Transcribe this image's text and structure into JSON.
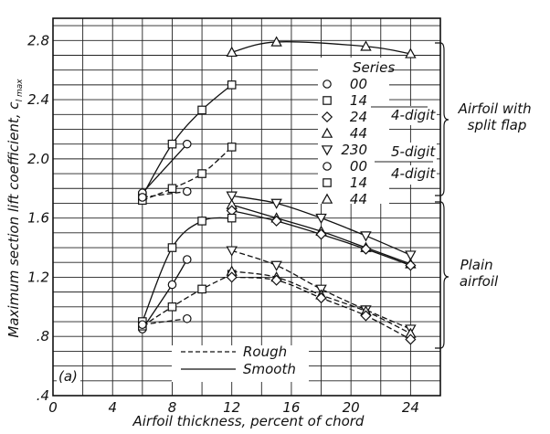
{
  "chart_data": {
    "type": "line",
    "panel_tag": "(a)",
    "xlabel": "Airfoil thickness, percent of chord",
    "ylabel": "Maximum section lift coefficient, c",
    "ylabel_sub": "l max",
    "xlim": [
      0,
      26
    ],
    "ylim": [
      0.4,
      2.95
    ],
    "xticks": [
      0,
      4,
      8,
      12,
      16,
      20,
      24
    ],
    "yticks": [
      0.4,
      0.8,
      1.2,
      1.6,
      2.0,
      2.4,
      2.8
    ],
    "ytick_labels": [
      ".4",
      ".8",
      "1.2",
      "1.6",
      "2.0",
      "2.4",
      "2.8"
    ],
    "grid": true,
    "legend_title": "Series",
    "legend": [
      {
        "marker": "circle",
        "label": "00"
      },
      {
        "marker": "square",
        "label": "14"
      },
      {
        "marker": "diamond",
        "label": "24"
      },
      {
        "marker": "triangle",
        "label": "44"
      },
      {
        "marker": "triangle-down",
        "label": "230"
      },
      {
        "marker": "circle",
        "label": "00"
      },
      {
        "marker": "square",
        "label": "14"
      },
      {
        "marker": "triangle",
        "label": "44"
      }
    ],
    "group_labels": [
      "4-digit",
      "5-digit",
      "4-digit"
    ],
    "bracket_labels": [
      "Airfoil with split flap",
      "Plain airfoil"
    ],
    "style_legend": [
      {
        "style": "dashed",
        "label": "Rough"
      },
      {
        "style": "solid",
        "label": "Smooth"
      }
    ],
    "series": [
      {
        "group": "flap",
        "marker": "square",
        "style": "solid",
        "x": [
          6,
          8,
          10,
          12
        ],
        "y": [
          1.75,
          2.1,
          2.33,
          2.5
        ]
      },
      {
        "group": "flap",
        "marker": "circle",
        "style": "solid",
        "x": [
          6,
          9
        ],
        "y": [
          1.77,
          2.1
        ]
      },
      {
        "group": "flap",
        "marker": "square",
        "style": "dashed",
        "x": [
          6,
          8,
          10,
          12
        ],
        "y": [
          1.72,
          1.8,
          1.9,
          2.08
        ]
      },
      {
        "group": "flap",
        "marker": "circle",
        "style": "dashed",
        "x": [
          6,
          9
        ],
        "y": [
          1.74,
          1.78
        ]
      },
      {
        "group": "flap",
        "marker": "triangle",
        "style": "solid",
        "x": [
          12,
          15,
          21,
          24
        ],
        "y": [
          2.72,
          2.79,
          2.76,
          2.71
        ]
      },
      {
        "group": "plain",
        "marker": "triangle-down",
        "style": "solid",
        "x": [
          12,
          15,
          18,
          21,
          24
        ],
        "y": [
          1.75,
          1.7,
          1.6,
          1.48,
          1.35
        ]
      },
      {
        "group": "plain",
        "marker": "triangle",
        "style": "solid",
        "x": [
          12,
          15,
          18,
          21,
          24
        ],
        "y": [
          1.69,
          1.6,
          1.51,
          1.4,
          1.29
        ]
      },
      {
        "group": "plain",
        "marker": "diamond",
        "style": "solid",
        "x": [
          12,
          15,
          18,
          21,
          24
        ],
        "y": [
          1.65,
          1.58,
          1.49,
          1.39,
          1.28
        ]
      },
      {
        "group": "plain",
        "marker": "square",
        "style": "solid",
        "x": [
          6,
          8,
          10,
          12
        ],
        "y": [
          0.9,
          1.4,
          1.58,
          1.6
        ]
      },
      {
        "group": "plain",
        "marker": "circle",
        "style": "solid",
        "x": [
          6,
          8,
          9
        ],
        "y": [
          0.85,
          1.15,
          1.32
        ]
      },
      {
        "group": "plain",
        "marker": "square",
        "style": "dashed",
        "x": [
          6,
          8,
          10,
          12
        ],
        "y": [
          0.87,
          1.0,
          1.12,
          1.22
        ]
      },
      {
        "group": "plain",
        "marker": "circle",
        "style": "dashed",
        "x": [
          6,
          9
        ],
        "y": [
          0.88,
          0.92
        ]
      },
      {
        "group": "plain",
        "marker": "triangle-down",
        "style": "dashed",
        "x": [
          12,
          15,
          18,
          21,
          24
        ],
        "y": [
          1.38,
          1.28,
          1.12,
          0.98,
          0.85
        ]
      },
      {
        "group": "plain",
        "marker": "triangle",
        "style": "dashed",
        "x": [
          12,
          15,
          18,
          21,
          24
        ],
        "y": [
          1.24,
          1.2,
          1.08,
          0.97,
          0.82
        ]
      },
      {
        "group": "plain",
        "marker": "diamond",
        "style": "dashed",
        "x": [
          12,
          15,
          18,
          21,
          24
        ],
        "y": [
          1.2,
          1.18,
          1.06,
          0.94,
          0.78
        ]
      }
    ]
  }
}
